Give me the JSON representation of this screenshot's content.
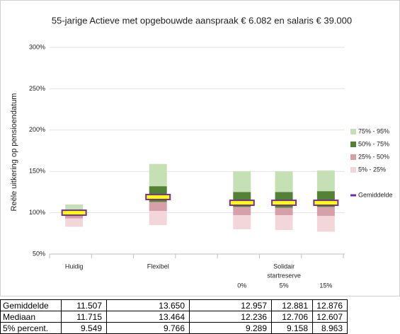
{
  "chart_data": {
    "type": "bar",
    "title": "55-jarige Actieve met opgebouwde aanspraak € 6.082 en salaris € 39.000",
    "y_label": "Reële uitkering op pensioendatum",
    "categories": [
      "Huidig",
      null,
      "Flexibel",
      null,
      "0%",
      "5%",
      "15%"
    ],
    "category_group": [
      "Solidair",
      "startreserve"
    ],
    "series": [
      {
        "name": "75% - 95%",
        "color": "#c5e0b4",
        "values": [
          [
            103,
            110
          ],
          null,
          [
            132,
            159
          ],
          null,
          [
            125,
            150
          ],
          [
            125,
            150
          ],
          [
            126,
            151
          ]
        ]
      },
      {
        "name": "50% - 75%",
        "color": "#548235",
        "values": [
          [
            98,
            103
          ],
          null,
          [
            113,
            132
          ],
          null,
          [
            107,
            125
          ],
          [
            106,
            125
          ],
          [
            107,
            126
          ]
        ]
      },
      {
        "name": "25% - 50%",
        "color": "#d5a0a7",
        "values": [
          [
            93,
            98
          ],
          null,
          [
            102,
            113
          ],
          null,
          [
            97,
            107
          ],
          [
            97,
            106
          ],
          [
            96,
            107
          ]
        ]
      },
      {
        "name": "5% - 25%",
        "color": "#f2d6da",
        "values": [
          [
            83,
            93
          ],
          null,
          [
            85,
            102
          ],
          null,
          [
            80,
            97
          ],
          [
            79,
            97
          ],
          [
            77,
            96
          ]
        ]
      },
      {
        "name": "Gemiddelde",
        "color": "#ffff00",
        "stroke": "#7030a0",
        "marker": true,
        "values": [
          100,
          null,
          119,
          null,
          112,
          112,
          112
        ]
      }
    ],
    "ylim": [
      50,
      300
    ],
    "yticks": [
      {
        "value": 50,
        "label": "50%"
      },
      {
        "value": 100,
        "label": "100%"
      },
      {
        "value": 150,
        "label": "150%"
      },
      {
        "value": 200,
        "label": "200%"
      },
      {
        "value": 250,
        "label": "250%"
      },
      {
        "value": 300,
        "label": "300%"
      }
    ],
    "grid": true,
    "legend": "right"
  },
  "table": {
    "rows": [
      [
        "Gemiddelde",
        "11.507",
        "13.650",
        "12.957",
        "12.881",
        "12.876"
      ],
      [
        "Mediaan",
        "11.715",
        "13.464",
        "12.236",
        "12.706",
        "12.607"
      ],
      [
        "5% percent.",
        "9.549",
        "9.766",
        "9.289",
        "9.158",
        "8.963"
      ]
    ]
  }
}
